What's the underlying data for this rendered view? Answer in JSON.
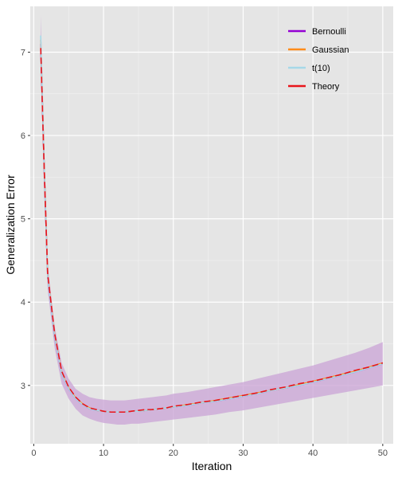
{
  "chart_data": {
    "type": "line",
    "xlabel": "Iteration",
    "ylabel": "Generalization Error",
    "xlim": [
      -0.5,
      51.5
    ],
    "ylim": [
      2.3,
      7.55
    ],
    "x_ticks": [
      0,
      10,
      20,
      30,
      40,
      50
    ],
    "y_ticks": [
      3,
      4,
      5,
      6,
      7
    ],
    "grid": true,
    "legend_position": "top-right",
    "series": [
      {
        "name": "Bernoulli",
        "color": "#9400d3",
        "style": "solid",
        "x": [
          1,
          1.5,
          2,
          3,
          4,
          5,
          6,
          7,
          8,
          9,
          10,
          11,
          12,
          13,
          14,
          15,
          16,
          17,
          18,
          19,
          20,
          22,
          24,
          26,
          28,
          30,
          32,
          34,
          36,
          38,
          40,
          42,
          44,
          46,
          48,
          50
        ],
        "y": [
          7.1,
          5.6,
          4.3,
          3.58,
          3.14,
          2.96,
          2.84,
          2.77,
          2.72,
          2.7,
          2.69,
          2.68,
          2.68,
          2.68,
          2.69,
          2.69,
          2.7,
          2.71,
          2.72,
          2.73,
          2.74,
          2.76,
          2.79,
          2.81,
          2.84,
          2.87,
          2.9,
          2.94,
          2.97,
          3.0,
          3.04,
          3.08,
          3.12,
          3.16,
          3.21,
          3.26
        ],
        "band_lower": [
          6.8,
          5.3,
          4.15,
          3.45,
          3.02,
          2.84,
          2.72,
          2.64,
          2.6,
          2.57,
          2.55,
          2.54,
          2.53,
          2.53,
          2.54,
          2.54,
          2.55,
          2.56,
          2.57,
          2.58,
          2.59,
          2.61,
          2.63,
          2.65,
          2.68,
          2.7,
          2.73,
          2.76,
          2.79,
          2.82,
          2.85,
          2.88,
          2.91,
          2.94,
          2.97,
          3.0
        ],
        "band_upper": [
          7.45,
          5.9,
          4.45,
          3.71,
          3.27,
          3.08,
          2.96,
          2.9,
          2.86,
          2.84,
          2.83,
          2.82,
          2.82,
          2.82,
          2.83,
          2.84,
          2.85,
          2.86,
          2.87,
          2.88,
          2.9,
          2.92,
          2.95,
          2.98,
          3.01,
          3.04,
          3.08,
          3.12,
          3.16,
          3.2,
          3.24,
          3.29,
          3.34,
          3.39,
          3.45,
          3.52
        ]
      },
      {
        "name": "Gaussian",
        "color": "#ff8c1a",
        "style": "solid",
        "x": [
          1,
          1.5,
          2,
          3,
          4,
          5,
          6,
          7,
          8,
          9,
          10,
          11,
          12,
          13,
          14,
          15,
          16,
          17,
          18,
          19,
          20,
          22,
          24,
          26,
          28,
          30,
          32,
          34,
          36,
          38,
          40,
          42,
          44,
          46,
          48,
          50
        ],
        "y": [
          7.15,
          5.62,
          4.32,
          3.6,
          3.15,
          2.97,
          2.85,
          2.78,
          2.73,
          2.7,
          2.69,
          2.68,
          2.68,
          2.68,
          2.69,
          2.69,
          2.7,
          2.71,
          2.72,
          2.73,
          2.74,
          2.77,
          2.79,
          2.82,
          2.85,
          2.88,
          2.91,
          2.94,
          2.97,
          3.01,
          3.05,
          3.09,
          3.13,
          3.17,
          3.22,
          3.27
        ]
      },
      {
        "name": "t(10)",
        "color": "#a6d8e8",
        "style": "solid",
        "x": [
          1,
          1.5,
          2,
          3,
          4,
          5,
          6,
          7,
          8,
          9,
          10,
          11,
          12,
          13,
          14,
          15,
          16,
          17,
          18,
          19,
          20,
          22,
          24,
          26,
          28,
          30,
          32,
          34,
          36,
          38,
          40,
          42,
          44,
          46,
          48,
          50
        ],
        "y": [
          7.2,
          5.62,
          4.3,
          3.58,
          3.14,
          2.96,
          2.84,
          2.77,
          2.72,
          2.7,
          2.69,
          2.68,
          2.68,
          2.68,
          2.69,
          2.69,
          2.7,
          2.71,
          2.72,
          2.73,
          2.74,
          2.76,
          2.79,
          2.81,
          2.84,
          2.87,
          2.9,
          2.94,
          2.97,
          3.0,
          3.04,
          3.08,
          3.12,
          3.16,
          3.21,
          3.26
        ]
      },
      {
        "name": "Theory",
        "color": "#e8151b",
        "style": "dashed",
        "x": [
          1,
          1.5,
          2,
          3,
          4,
          5,
          6,
          7,
          8,
          9,
          10,
          11,
          12,
          13,
          14,
          15,
          16,
          17,
          18,
          19,
          20,
          22,
          24,
          26,
          28,
          30,
          32,
          34,
          36,
          38,
          40,
          42,
          44,
          46,
          48,
          50
        ],
        "y": [
          7.05,
          5.6,
          4.33,
          3.62,
          3.17,
          2.98,
          2.86,
          2.78,
          2.73,
          2.71,
          2.69,
          2.68,
          2.68,
          2.68,
          2.69,
          2.7,
          2.71,
          2.71,
          2.72,
          2.73,
          2.75,
          2.77,
          2.8,
          2.82,
          2.85,
          2.88,
          2.91,
          2.95,
          2.98,
          3.02,
          3.05,
          3.09,
          3.13,
          3.18,
          3.22,
          3.27
        ]
      }
    ]
  },
  "colors": {
    "panel_background": "#e5e5e5",
    "grid_major": "#ffffff",
    "grid_minor": "#f2f2f2",
    "band_fill": "#c9a3d6"
  }
}
